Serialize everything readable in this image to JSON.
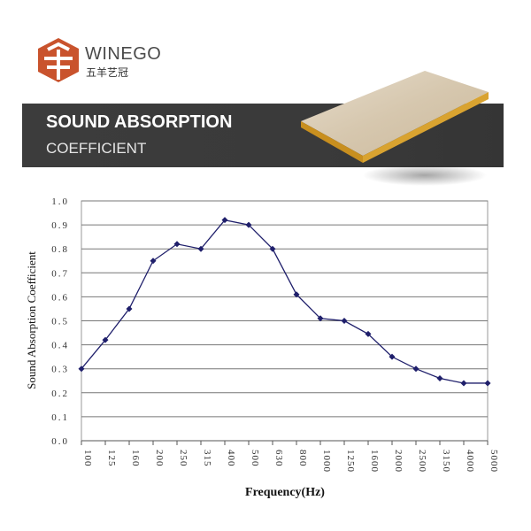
{
  "logo": {
    "brand": "WINEGO",
    "brand_cn": "五羊艺冠",
    "color": "#c9532d"
  },
  "banner": {
    "title": "SOUND ABSORPTION",
    "subtitle": "COEFFICIENT",
    "background": "#3a3a3a"
  },
  "chart_data": {
    "type": "line",
    "title": "",
    "xlabel": "Frequency(Hz)",
    "ylabel": "Sound Absorption Coefficient",
    "categories": [
      "100",
      "125",
      "160",
      "200",
      "250",
      "315",
      "400",
      "500",
      "630",
      "800",
      "1000",
      "1250",
      "1600",
      "2000",
      "2500",
      "3150",
      "4000",
      "5000"
    ],
    "series": [
      {
        "values": [
          0.3,
          0.42,
          0.55,
          0.75,
          0.82,
          0.8,
          0.92,
          0.9,
          0.8,
          0.61,
          0.51,
          0.5,
          0.445,
          0.35,
          0.3,
          0.26,
          0.24,
          0.24
        ],
        "color": "#1f1f6b",
        "marker": "diamond"
      }
    ],
    "ylim": [
      0,
      1.0
    ],
    "yticks": [
      "0.0",
      "0.1",
      "0.2",
      "0.3",
      "0.4",
      "0.5",
      "0.6",
      "0.7",
      "0.8",
      "0.9",
      "1.0"
    ],
    "grid": "horizontal",
    "legend": "none"
  }
}
